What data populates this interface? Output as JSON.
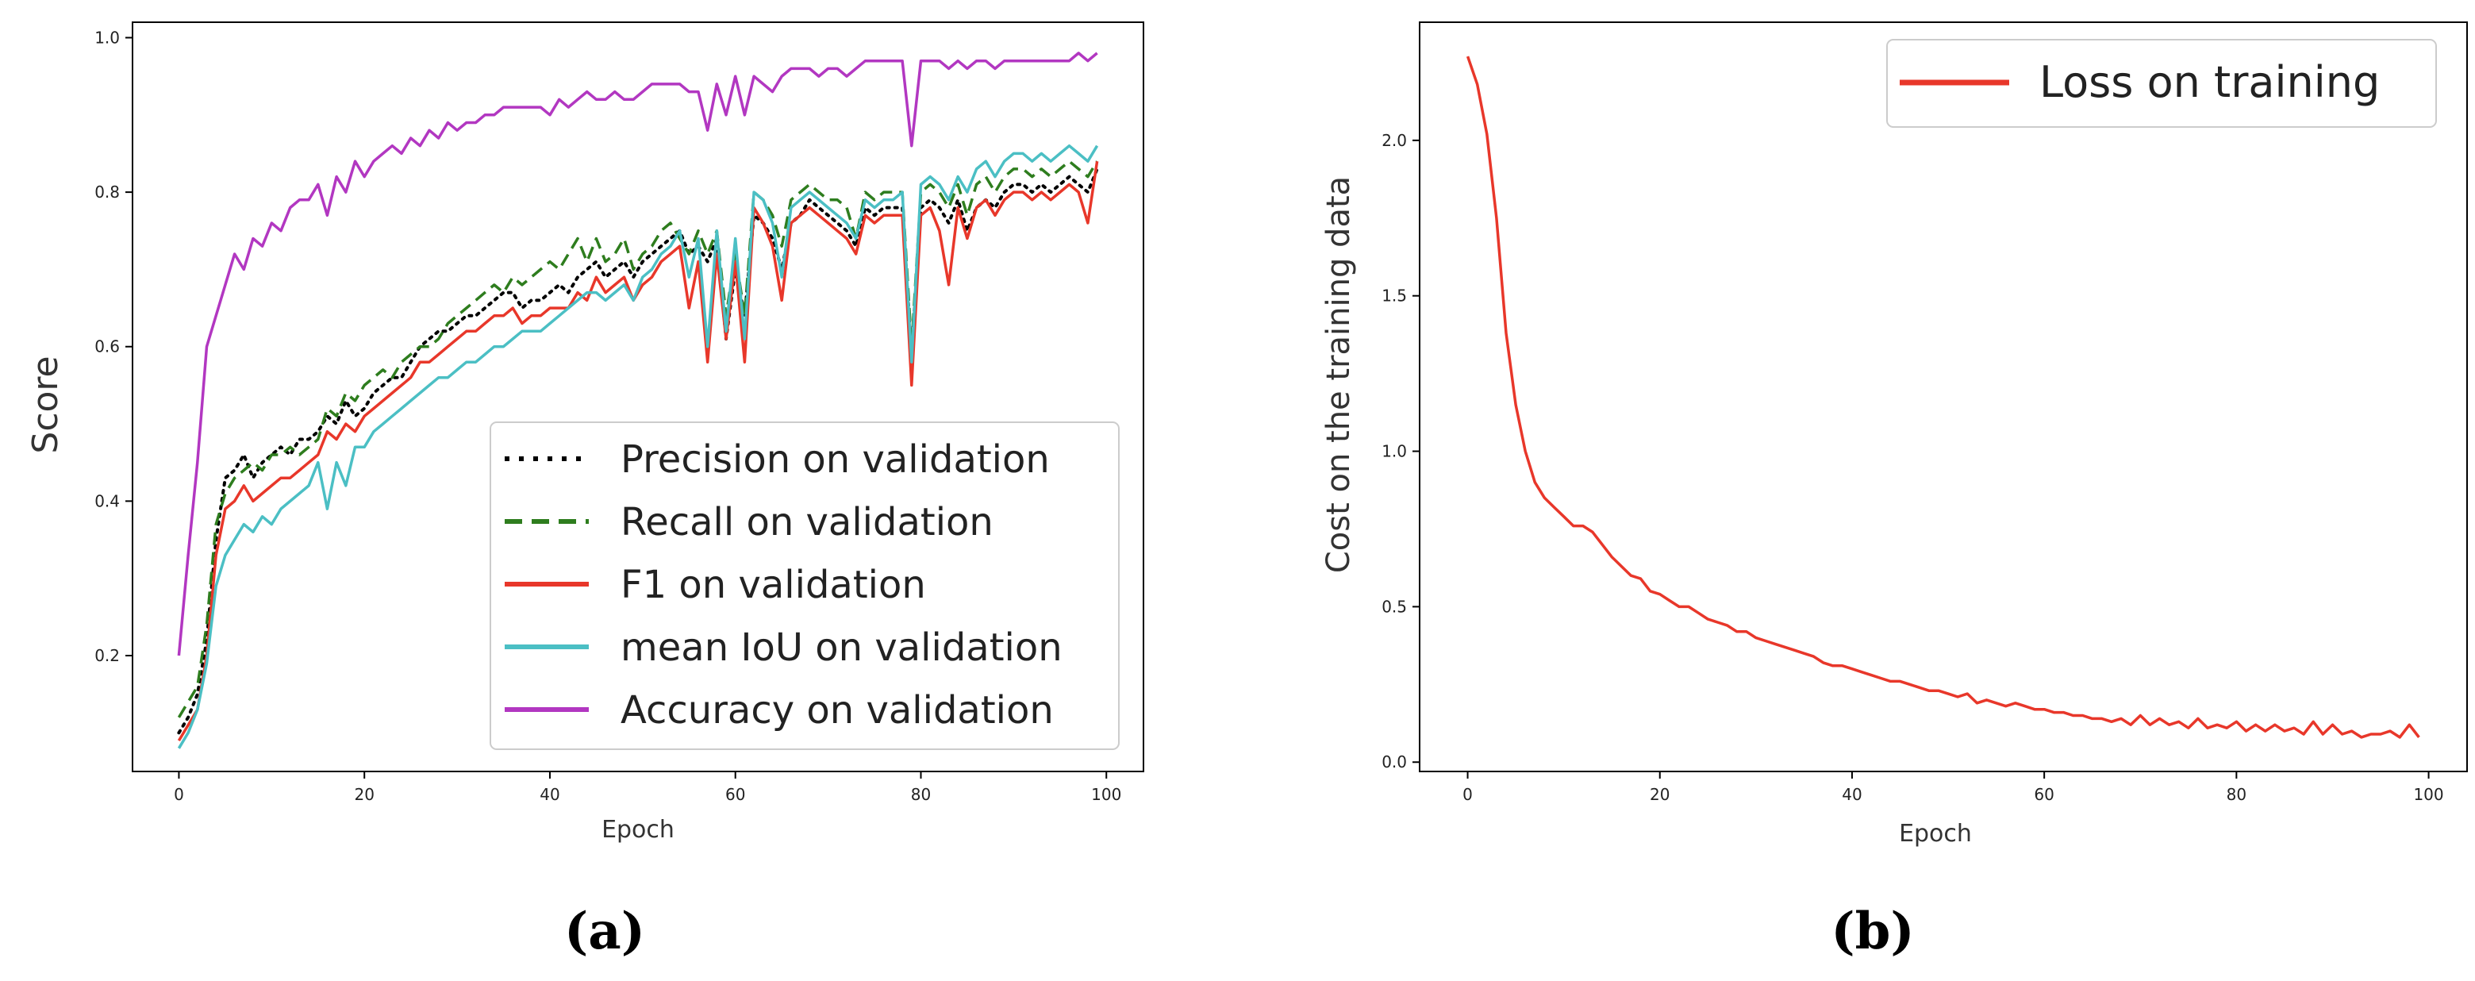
{
  "chart_data": [
    {
      "type": "line",
      "panel_label": "(a)",
      "xlabel": "Epoch",
      "ylabel": "Score",
      "xlim": [
        -5,
        104
      ],
      "ylim": [
        0.05,
        1.02
      ],
      "xticks": [
        0,
        20,
        40,
        60,
        80,
        100
      ],
      "yticks": [
        0.2,
        0.4,
        0.6,
        0.8,
        1.0
      ],
      "legend_position": "lower-right",
      "series": [
        {
          "name": "Precision on validation",
          "color": "#000000",
          "style": "dotted",
          "values": [
            0.1,
            0.12,
            0.15,
            0.22,
            0.35,
            0.43,
            0.44,
            0.46,
            0.43,
            0.45,
            0.46,
            0.47,
            0.46,
            0.48,
            0.48,
            0.49,
            0.51,
            0.5,
            0.53,
            0.51,
            0.52,
            0.54,
            0.55,
            0.56,
            0.56,
            0.58,
            0.6,
            0.61,
            0.62,
            0.62,
            0.63,
            0.64,
            0.64,
            0.65,
            0.66,
            0.67,
            0.67,
            0.65,
            0.66,
            0.66,
            0.67,
            0.68,
            0.67,
            0.69,
            0.7,
            0.71,
            0.69,
            0.7,
            0.71,
            0.69,
            0.71,
            0.72,
            0.73,
            0.74,
            0.75,
            0.72,
            0.73,
            0.71,
            0.74,
            0.61,
            0.7,
            0.64,
            0.77,
            0.76,
            0.74,
            0.7,
            0.76,
            0.77,
            0.79,
            0.78,
            0.77,
            0.76,
            0.75,
            0.73,
            0.78,
            0.77,
            0.78,
            0.78,
            0.78,
            0.59,
            0.78,
            0.79,
            0.78,
            0.76,
            0.79,
            0.75,
            0.78,
            0.79,
            0.78,
            0.8,
            0.81,
            0.81,
            0.8,
            0.81,
            0.8,
            0.81,
            0.82,
            0.81,
            0.8,
            0.83
          ]
        },
        {
          "name": "Recall on validation",
          "color": "#2e7d1e",
          "style": "dashed",
          "values": [
            0.12,
            0.14,
            0.16,
            0.24,
            0.37,
            0.41,
            0.43,
            0.44,
            0.45,
            0.44,
            0.46,
            0.46,
            0.47,
            0.46,
            0.47,
            0.48,
            0.52,
            0.51,
            0.54,
            0.53,
            0.55,
            0.56,
            0.57,
            0.56,
            0.58,
            0.59,
            0.6,
            0.6,
            0.61,
            0.63,
            0.64,
            0.65,
            0.66,
            0.67,
            0.68,
            0.67,
            0.69,
            0.68,
            0.69,
            0.7,
            0.71,
            0.7,
            0.72,
            0.74,
            0.71,
            0.74,
            0.71,
            0.72,
            0.74,
            0.7,
            0.72,
            0.73,
            0.75,
            0.76,
            0.74,
            0.72,
            0.75,
            0.72,
            0.75,
            0.64,
            0.72,
            0.64,
            0.8,
            0.79,
            0.77,
            0.73,
            0.79,
            0.8,
            0.81,
            0.8,
            0.79,
            0.79,
            0.78,
            0.74,
            0.8,
            0.79,
            0.8,
            0.8,
            0.8,
            0.6,
            0.8,
            0.81,
            0.8,
            0.78,
            0.81,
            0.77,
            0.81,
            0.82,
            0.8,
            0.82,
            0.83,
            0.83,
            0.82,
            0.83,
            0.82,
            0.83,
            0.84,
            0.83,
            0.82,
            0.84
          ]
        },
        {
          "name": "F1 on validation",
          "color": "#e8372a",
          "style": "solid",
          "values": [
            0.09,
            0.11,
            0.13,
            0.2,
            0.33,
            0.39,
            0.4,
            0.42,
            0.4,
            0.41,
            0.42,
            0.43,
            0.43,
            0.44,
            0.45,
            0.46,
            0.49,
            0.48,
            0.5,
            0.49,
            0.51,
            0.52,
            0.53,
            0.54,
            0.55,
            0.56,
            0.58,
            0.58,
            0.59,
            0.6,
            0.61,
            0.62,
            0.62,
            0.63,
            0.64,
            0.64,
            0.65,
            0.63,
            0.64,
            0.64,
            0.65,
            0.65,
            0.65,
            0.67,
            0.66,
            0.69,
            0.67,
            0.68,
            0.69,
            0.66,
            0.68,
            0.69,
            0.71,
            0.72,
            0.73,
            0.65,
            0.71,
            0.58,
            0.72,
            0.61,
            0.71,
            0.58,
            0.78,
            0.76,
            0.73,
            0.66,
            0.76,
            0.77,
            0.78,
            0.77,
            0.76,
            0.75,
            0.74,
            0.72,
            0.77,
            0.76,
            0.77,
            0.77,
            0.77,
            0.55,
            0.77,
            0.78,
            0.75,
            0.68,
            0.78,
            0.74,
            0.78,
            0.79,
            0.77,
            0.79,
            0.8,
            0.8,
            0.79,
            0.8,
            0.79,
            0.8,
            0.81,
            0.8,
            0.76,
            0.84
          ]
        },
        {
          "name": "mean IoU on validation",
          "color": "#4bbfc4",
          "style": "solid",
          "values": [
            0.08,
            0.1,
            0.13,
            0.19,
            0.29,
            0.33,
            0.35,
            0.37,
            0.36,
            0.38,
            0.37,
            0.39,
            0.4,
            0.41,
            0.42,
            0.45,
            0.39,
            0.45,
            0.42,
            0.47,
            0.47,
            0.49,
            0.5,
            0.51,
            0.52,
            0.53,
            0.54,
            0.55,
            0.56,
            0.56,
            0.57,
            0.58,
            0.58,
            0.59,
            0.6,
            0.6,
            0.61,
            0.62,
            0.62,
            0.62,
            0.63,
            0.64,
            0.65,
            0.66,
            0.67,
            0.67,
            0.66,
            0.67,
            0.68,
            0.66,
            0.69,
            0.7,
            0.72,
            0.73,
            0.75,
            0.69,
            0.74,
            0.6,
            0.75,
            0.62,
            0.74,
            0.61,
            0.8,
            0.79,
            0.76,
            0.69,
            0.78,
            0.79,
            0.8,
            0.79,
            0.78,
            0.77,
            0.76,
            0.74,
            0.79,
            0.78,
            0.79,
            0.79,
            0.8,
            0.58,
            0.81,
            0.82,
            0.81,
            0.79,
            0.82,
            0.8,
            0.83,
            0.84,
            0.82,
            0.84,
            0.85,
            0.85,
            0.84,
            0.85,
            0.84,
            0.85,
            0.86,
            0.85,
            0.84,
            0.86
          ]
        },
        {
          "name": "Accuracy on validation",
          "color": "#b237c1",
          "style": "solid",
          "values": [
            0.2,
            0.33,
            0.45,
            0.6,
            0.64,
            0.68,
            0.72,
            0.7,
            0.74,
            0.73,
            0.76,
            0.75,
            0.78,
            0.79,
            0.79,
            0.81,
            0.77,
            0.82,
            0.8,
            0.84,
            0.82,
            0.84,
            0.85,
            0.86,
            0.85,
            0.87,
            0.86,
            0.88,
            0.87,
            0.89,
            0.88,
            0.89,
            0.89,
            0.9,
            0.9,
            0.91,
            0.91,
            0.91,
            0.91,
            0.91,
            0.9,
            0.92,
            0.91,
            0.92,
            0.93,
            0.92,
            0.92,
            0.93,
            0.92,
            0.92,
            0.93,
            0.94,
            0.94,
            0.94,
            0.94,
            0.93,
            0.93,
            0.88,
            0.94,
            0.9,
            0.95,
            0.9,
            0.95,
            0.94,
            0.93,
            0.95,
            0.96,
            0.96,
            0.96,
            0.95,
            0.96,
            0.96,
            0.95,
            0.96,
            0.97,
            0.97,
            0.97,
            0.97,
            0.97,
            0.86,
            0.97,
            0.97,
            0.97,
            0.96,
            0.97,
            0.96,
            0.97,
            0.97,
            0.96,
            0.97,
            0.97,
            0.97,
            0.97,
            0.97,
            0.97,
            0.97,
            0.97,
            0.98,
            0.97,
            0.98
          ]
        }
      ]
    },
    {
      "type": "line",
      "panel_label": "(b)",
      "xlabel": "Epoch",
      "ylabel": "Cost on the training data",
      "xlim": [
        -5,
        104
      ],
      "ylim": [
        -0.03,
        2.38
      ],
      "xticks": [
        0,
        20,
        40,
        60,
        80,
        100
      ],
      "yticks": [
        0.0,
        0.5,
        1.0,
        1.5,
        2.0
      ],
      "legend_position": "top-right",
      "series": [
        {
          "name": "Loss on training",
          "color": "#e8372a",
          "style": "solid",
          "values": [
            2.27,
            2.18,
            2.02,
            1.75,
            1.38,
            1.15,
            1.0,
            0.9,
            0.85,
            0.82,
            0.79,
            0.76,
            0.76,
            0.74,
            0.7,
            0.66,
            0.63,
            0.6,
            0.59,
            0.55,
            0.54,
            0.52,
            0.5,
            0.5,
            0.48,
            0.46,
            0.45,
            0.44,
            0.42,
            0.42,
            0.4,
            0.39,
            0.38,
            0.37,
            0.36,
            0.35,
            0.34,
            0.32,
            0.31,
            0.31,
            0.3,
            0.29,
            0.28,
            0.27,
            0.26,
            0.26,
            0.25,
            0.24,
            0.23,
            0.23,
            0.22,
            0.21,
            0.22,
            0.19,
            0.2,
            0.19,
            0.18,
            0.19,
            0.18,
            0.17,
            0.17,
            0.16,
            0.16,
            0.15,
            0.15,
            0.14,
            0.14,
            0.13,
            0.14,
            0.12,
            0.15,
            0.12,
            0.14,
            0.12,
            0.13,
            0.11,
            0.14,
            0.11,
            0.12,
            0.11,
            0.13,
            0.1,
            0.12,
            0.1,
            0.12,
            0.1,
            0.11,
            0.09,
            0.13,
            0.09,
            0.12,
            0.09,
            0.1,
            0.08,
            0.09,
            0.09,
            0.1,
            0.08,
            0.12,
            0.08
          ]
        }
      ]
    }
  ]
}
